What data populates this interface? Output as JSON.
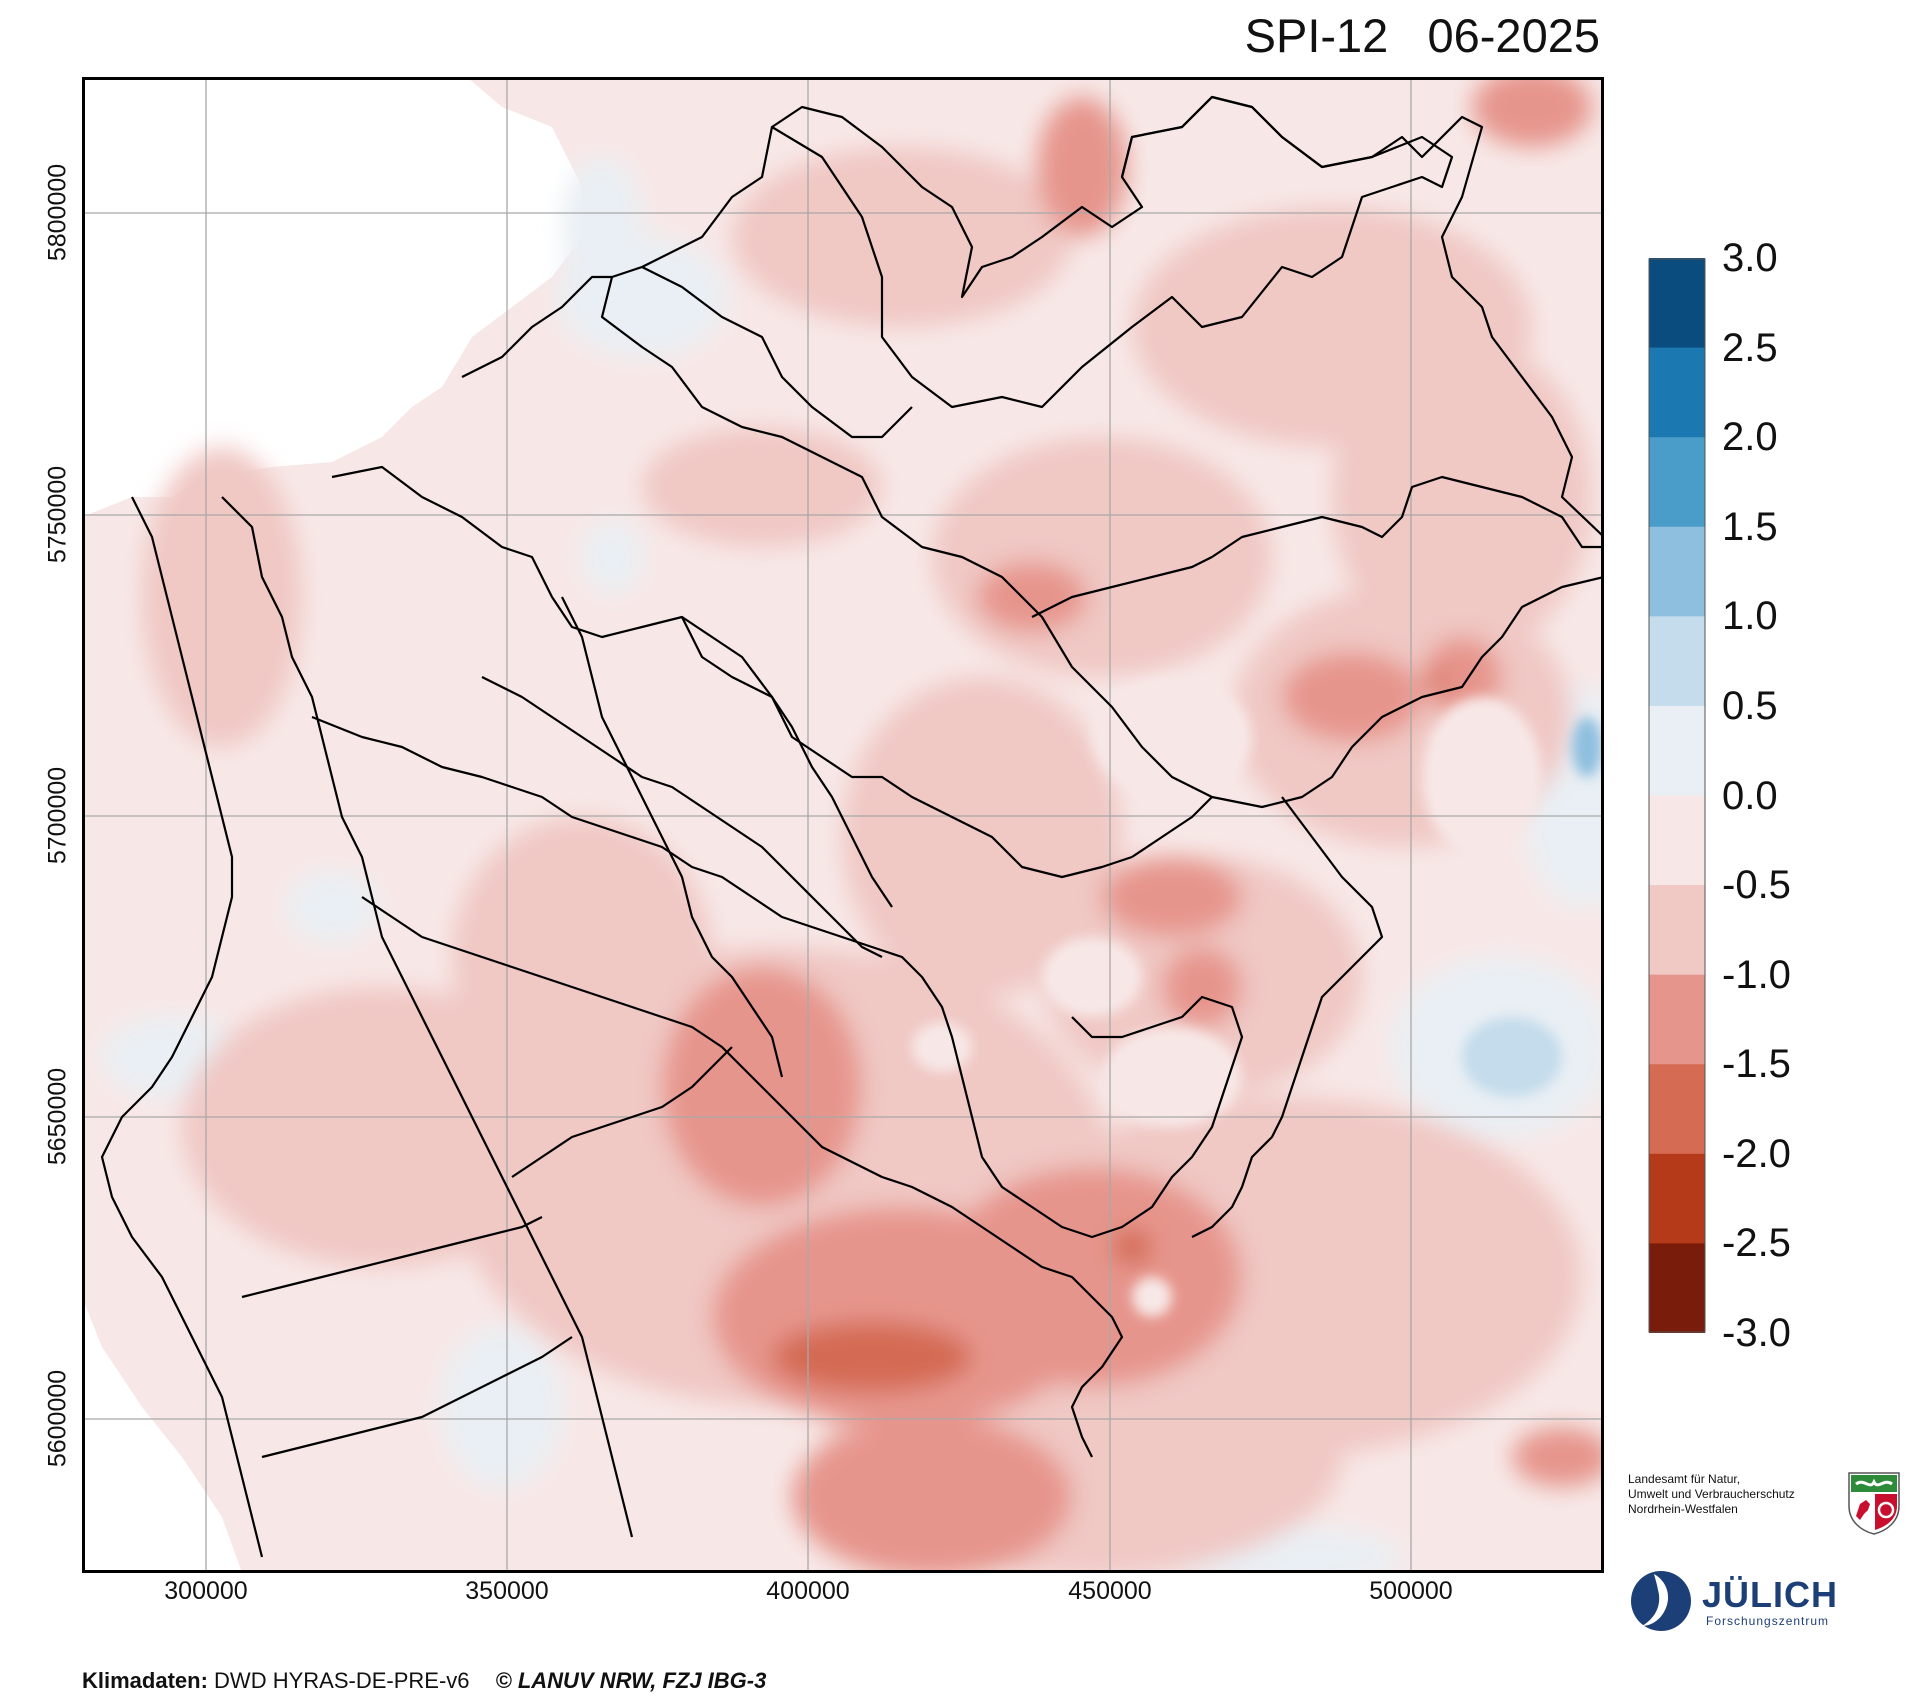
{
  "title": {
    "index": "SPI-12",
    "date": "06-2025"
  },
  "axes": {
    "x_ticks": [
      "300000",
      "350000",
      "400000",
      "450000",
      "500000"
    ],
    "y_ticks": [
      "5800000",
      "5750000",
      "5700000",
      "5650000",
      "5600000"
    ]
  },
  "legend": {
    "labels": [
      "3.0",
      "2.5",
      "2.0",
      "1.5",
      "1.0",
      "0.5",
      "0.0",
      "-0.5",
      "-1.0",
      "-1.5",
      "-2.0",
      "-2.5",
      "-3.0"
    ],
    "colors": [
      "#0a4c7d",
      "#1b78b0",
      "#4a9dc9",
      "#8fbfdf",
      "#c4dcec",
      "#e9eff4",
      "#f7e8e7",
      "#f0c8c4",
      "#e6958c",
      "#d46b52",
      "#b53a1a",
      "#7a1c0c"
    ]
  },
  "credits": {
    "label": "Klimadaten:",
    "source": "DWD HYRAS-DE-PRE-v6",
    "copyright": "© LANUV NRW, FZJ IBG-3"
  },
  "logos": {
    "lanuv_line1": "Landesamt für Natur,",
    "lanuv_line2": "Umwelt und Verbraucherschutz",
    "lanuv_line3": "Nordrhein-Westfalen",
    "juelich_name": "JÜLICH",
    "juelich_sub": "Forschungszentrum"
  },
  "colors": {
    "frame": "#000000",
    "grid": "#a8a8a8",
    "border": "#000000"
  }
}
